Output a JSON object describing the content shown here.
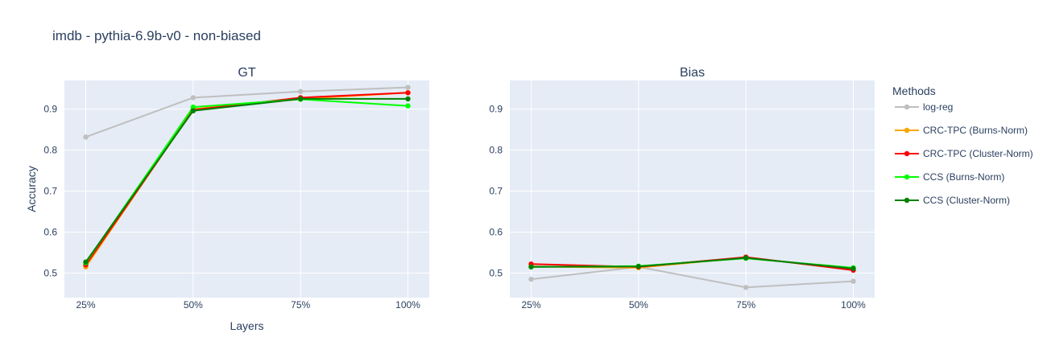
{
  "chart_data": {
    "type": "line",
    "title": "imdb - pythia-6.9b-v0 - non-biased",
    "categories": [
      "25%",
      "50%",
      "75%",
      "100%"
    ],
    "ylabel": "Accuracy",
    "xlabel": "Layers",
    "ylim": [
      0.44,
      0.97
    ],
    "yticks": [
      0.5,
      0.6,
      0.7,
      0.8,
      0.9
    ],
    "legend_title": "Methods",
    "legend_position": "right",
    "series": [
      {
        "name": "log-reg",
        "color": "#bfbfbf"
      },
      {
        "name": "CRC-TPC (Burns-Norm)",
        "color": "#ffa500"
      },
      {
        "name": "CRC-TPC (Cluster-Norm)",
        "color": "#ff0000"
      },
      {
        "name": "CCS (Burns-Norm)",
        "color": "#00ff00"
      },
      {
        "name": "CCS (Cluster-Norm)",
        "color": "#008000"
      }
    ],
    "panels": [
      {
        "title": "GT",
        "values": [
          [
            0.832,
            0.928,
            0.943,
            0.953
          ],
          [
            0.515,
            0.9,
            0.925,
            0.94
          ],
          [
            0.52,
            0.898,
            0.928,
            0.94
          ],
          [
            0.525,
            0.905,
            0.924,
            0.908
          ],
          [
            0.527,
            0.896,
            0.925,
            0.925
          ]
        ]
      },
      {
        "title": "Bias",
        "values": [
          [
            0.485,
            0.515,
            0.465,
            0.48
          ],
          [
            0.516,
            0.513,
            0.538,
            0.509
          ],
          [
            0.522,
            0.515,
            0.539,
            0.507
          ],
          [
            0.515,
            0.517,
            0.536,
            0.513
          ],
          [
            0.515,
            0.516,
            0.537,
            0.511
          ]
        ]
      }
    ]
  }
}
